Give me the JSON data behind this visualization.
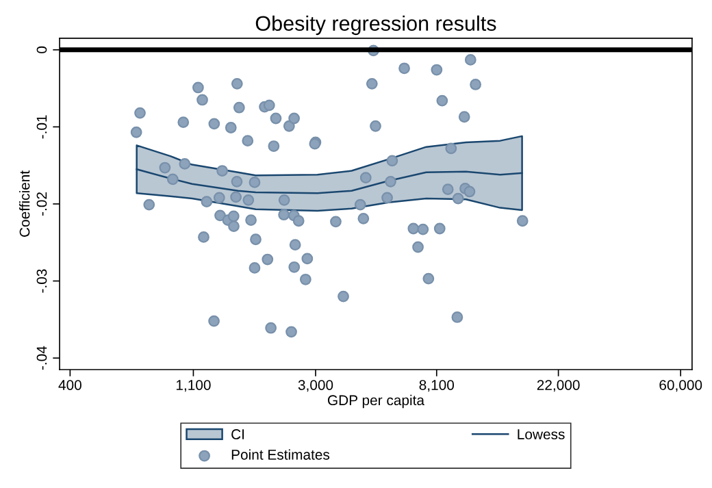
{
  "chart_data": {
    "type": "scatter",
    "title": "Obesity regression results",
    "xlabel": "GDP per capita",
    "ylabel": "Coefficient",
    "log": "x",
    "xlim": [
      367,
      65900
    ],
    "ylim": [
      -0.0415,
      0.0015
    ],
    "xticks": [
      400,
      {
        "value": 1100,
        "label": "1,100"
      },
      {
        "value": 3000,
        "label": "3,000"
      },
      {
        "value": 8100,
        "label": "8,100"
      },
      {
        "value": 22000,
        "label": "22,000"
      },
      {
        "value": 60000,
        "label": "60,000"
      }
    ],
    "yticks": [
      {
        "value": -0.04,
        "label": "-.04"
      },
      {
        "value": -0.03,
        "label": "-.03"
      },
      {
        "value": -0.02,
        "label": "-.02"
      },
      {
        "value": -0.01,
        "label": "-.01"
      },
      0
    ],
    "grid": false,
    "legend": "bottom",
    "annotations": [
      "CI"
    ],
    "ref_lines": [
      {
        "axis": "y",
        "value": 0,
        "color": "#000000"
      }
    ],
    "series": [
      {
        "name": "Lowess",
        "type": "line",
        "color": "#1a476f",
        "x": [
          691,
          911,
          1089,
          1586,
          1835,
          3044,
          4032,
          5459,
          7435,
          10300,
          13643,
          16334
        ],
        "values": [
          -0.0155,
          -0.0167,
          -0.0174,
          -0.0183,
          -0.0185,
          -0.0186,
          -0.0183,
          -0.017,
          -0.0159,
          -0.0158,
          -0.0162,
          -0.016
        ],
        "lower": [
          -0.0186,
          -0.019,
          -0.0193,
          -0.0203,
          -0.0207,
          -0.0209,
          -0.0206,
          -0.0198,
          -0.0193,
          -0.0194,
          -0.0205,
          -0.0208
        ],
        "upper": [
          -0.0124,
          -0.0138,
          -0.0149,
          -0.0159,
          -0.0163,
          -0.0162,
          -0.0157,
          -0.0142,
          -0.0126,
          -0.012,
          -0.0118,
          -0.0112
        ]
      },
      {
        "name": "Point Estimates",
        "color": "#8ca3bb",
        "marker": "circle",
        "x": [
          710,
          689,
          765,
          871,
          929,
          1025,
          1013,
          1144,
          1184,
          1305,
          1197,
          1227,
          1370,
          1361,
          1394,
          1461,
          1531,
          1533,
          1303,
          1497,
          1575,
          1602,
          1572,
          1560,
          1718,
          1819,
          1728,
          1765,
          1835,
          1819,
          2022,
          2078,
          1974,
          2051,
          2165,
          2128,
          2319,
          2312,
          2510,
          2610,
          2414,
          2515,
          2458,
          2537,
          2517,
          2802,
          2763,
          2999,
          2981,
          3540,
          3767,
          4442,
          4329,
          4528,
          4764,
          4822,
          4905,
          5398,
          5551,
          5624,
          6212,
          6694,
          7241,
          6951,
          8306,
          7575,
          8103,
          8476,
          9118,
          8884,
          9662,
          10239,
          10614,
          10167,
          10699,
          11146,
          9593,
          16388
        ],
        "values": [
          -0.0082,
          -0.0107,
          -0.0201,
          -0.0153,
          -0.0168,
          -0.0148,
          -0.0094,
          -0.0049,
          -0.0065,
          -0.0096,
          -0.0243,
          -0.0197,
          -0.0215,
          -0.0192,
          -0.0157,
          -0.0221,
          -0.0216,
          -0.0229,
          -0.0352,
          -0.0101,
          -0.0044,
          -0.0075,
          -0.0171,
          -0.0191,
          -0.0118,
          -0.0172,
          -0.0195,
          -0.0221,
          -0.0246,
          -0.0283,
          -0.0272,
          -0.0361,
          -0.0074,
          -0.0072,
          -0.0089,
          -0.0125,
          -0.0195,
          -0.0214,
          -0.0215,
          -0.0222,
          -0.0099,
          -0.0089,
          -0.0366,
          -0.0253,
          -0.0282,
          -0.0271,
          -0.0298,
          -0.012,
          -0.0122,
          -0.0223,
          -0.032,
          -0.0219,
          -0.0201,
          -0.0166,
          -0.0044,
          -0.0001,
          -0.0099,
          -0.0192,
          -0.0171,
          -0.0144,
          -0.0024,
          -0.0232,
          -0.0233,
          -0.0256,
          -0.0232,
          -0.0297,
          -0.0026,
          -0.0066,
          -0.0128,
          -0.0181,
          -0.0193,
          -0.018,
          -0.0184,
          -0.0087,
          -0.0013,
          -0.0045,
          -0.0347,
          -0.0222
        ]
      }
    ]
  }
}
